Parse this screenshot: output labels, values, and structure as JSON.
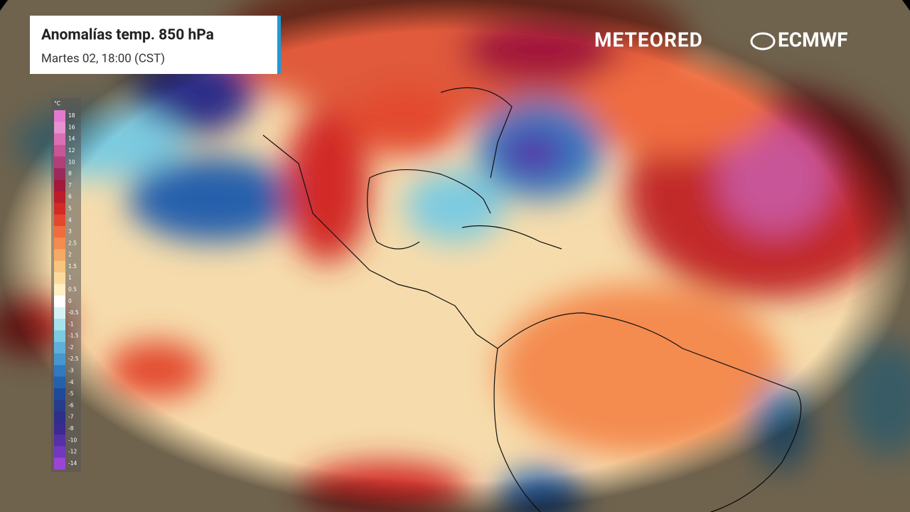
{
  "header": {
    "title": "Anomalías temp. 850 hPa",
    "subtitle": "Martes 02, 18:00 (CST)"
  },
  "logos": {
    "meteored": "METEORED",
    "ecmwf": "ECMWF"
  },
  "legend": {
    "unit": "°C",
    "labels": [
      18,
      16,
      14,
      12,
      10,
      8,
      7,
      6,
      5,
      4,
      3,
      2.5,
      2,
      1.5,
      1,
      0.5,
      0,
      -0.5,
      -1,
      -1.5,
      -2,
      -2.5,
      -3,
      -4,
      -5,
      -6,
      -7,
      -8,
      -10,
      -12,
      -14
    ],
    "colors": [
      "#e47ad0",
      "#e592cf",
      "#d96fb4",
      "#c85597",
      "#b13f78",
      "#9b2a5c",
      "#a3193a",
      "#bb1d2a",
      "#d22a25",
      "#e3482e",
      "#ef6c3f",
      "#f48b4f",
      "#f6a965",
      "#f9c47f",
      "#fbdb9c",
      "#fdeec3",
      "#ffffff",
      "#d6f2f4",
      "#a6e2ea",
      "#7ccbe0",
      "#5fb0d8",
      "#4796cd",
      "#3279bf",
      "#2560ac",
      "#1f4a98",
      "#263c8c",
      "#2e2f88",
      "#3b2a90",
      "#5630a6",
      "#7238bd",
      "#9b45d6"
    ]
  }
}
